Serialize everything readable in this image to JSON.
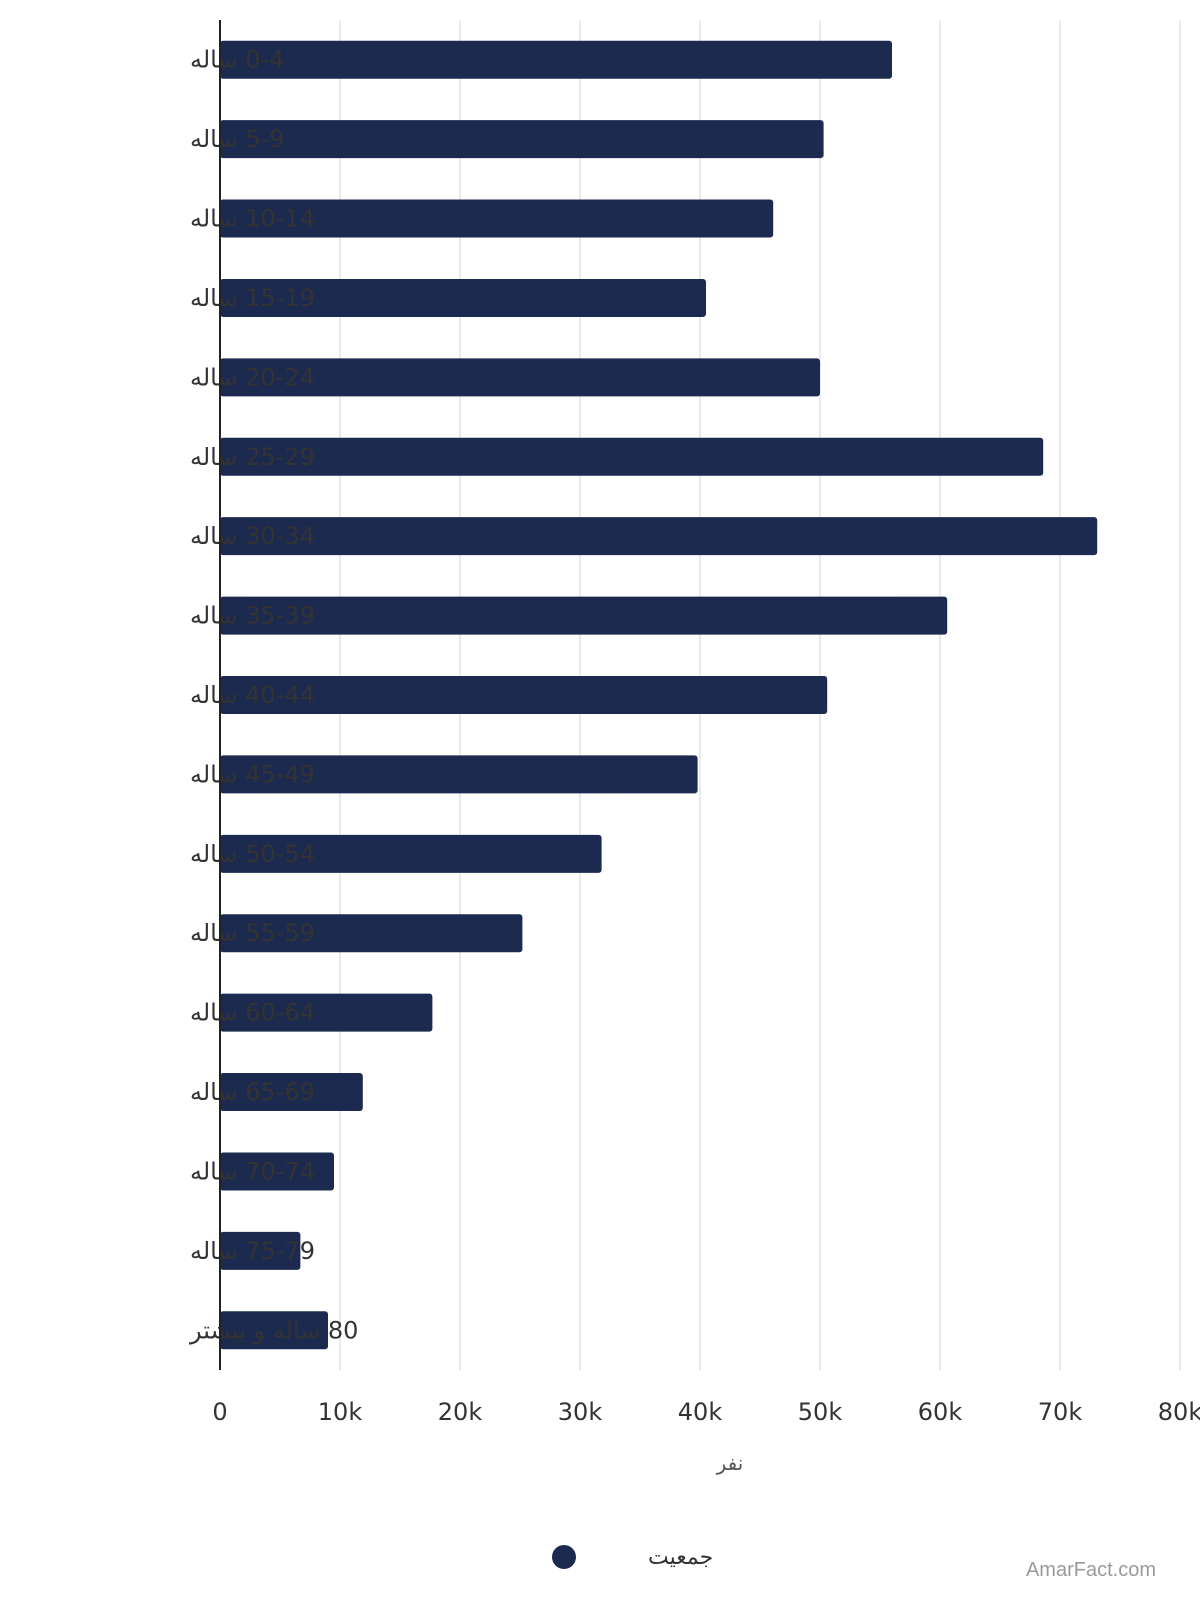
{
  "chart_data": {
    "type": "bar",
    "orientation": "horizontal",
    "categories": [
      "0-4 ساله",
      "5-9 ساله",
      "10-14 ساله",
      "15-19 ساله",
      "20-24 ساله",
      "25-29 ساله",
      "30-34 ساله",
      "35-39 ساله",
      "40-44 ساله",
      "45-49 ساله",
      "50-54 ساله",
      "55-59 ساله",
      "60-64 ساله",
      "65-69 ساله",
      "70-74 ساله",
      "75-79 ساله",
      "80 ساله و بیشتر"
    ],
    "series": [
      {
        "name": "جمعیت",
        "color": "#1b2a4e",
        "values": [
          56000,
          50300,
          46100,
          40500,
          50000,
          68600,
          73100,
          60600,
          50600,
          39800,
          31800,
          25200,
          17700,
          11900,
          9500,
          6700,
          9000
        ]
      }
    ],
    "xaxis": {
      "title": "نفر",
      "range": [
        0,
        80000
      ],
      "ticks": [
        0,
        10000,
        20000,
        30000,
        40000,
        50000,
        60000,
        70000,
        80000
      ],
      "tick_labels": [
        "0",
        "10k",
        "20k",
        "30k",
        "40k",
        "50k",
        "60k",
        "70k",
        "80k"
      ]
    },
    "grid": "vertical",
    "legend": "bottom-center"
  },
  "credit": "AmarFact.com"
}
